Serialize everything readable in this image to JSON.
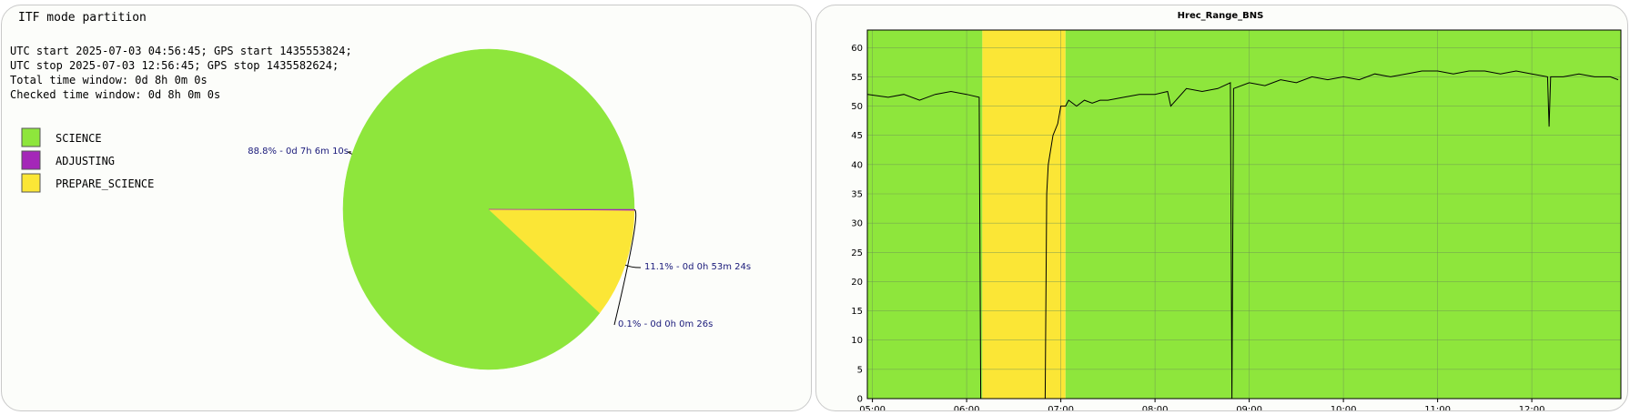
{
  "left": {
    "title": "ITF mode partition",
    "info_lines": [
      "UTC start 2025-07-03 04:56:45; GPS start 1435553824;",
      "UTC stop 2025-07-03 12:56:45; GPS stop 1435582624;",
      "Total time window: 0d 8h 0m 0s",
      "Checked time window: 0d 8h 0m 0s"
    ],
    "legend": [
      {
        "label": "SCIENCE",
        "color": "#8ee63c"
      },
      {
        "label": "ADJUSTING",
        "color": "#a427b8"
      },
      {
        "label": "PREPARE_SCIENCE",
        "color": "#fbe636"
      }
    ]
  },
  "chart_data": [
    {
      "type": "pie",
      "title": "ITF mode partition",
      "slices": [
        {
          "name": "SCIENCE",
          "percent": 88.8,
          "label": "88.8% - 0d 7h 6m 10s",
          "color": "#8ee63c"
        },
        {
          "name": "PREPARE_SCIENCE",
          "percent": 11.1,
          "label": "11.1% - 0d 0h 53m 24s",
          "color": "#fbe636"
        },
        {
          "name": "ADJUSTING",
          "percent": 0.1,
          "label": "0.1% - 0d 0h 0m 26s",
          "color": "#a427b8"
        }
      ]
    },
    {
      "type": "line",
      "title": "Hrec_Range_BNS",
      "xlabel": "",
      "ylabel": "",
      "x_range": [
        "04:56:45",
        "12:56:45"
      ],
      "ylim": [
        0,
        63
      ],
      "grid": true,
      "x_ticks": [
        "05:00",
        "06:00",
        "07:00",
        "08:00",
        "09:00",
        "10:00",
        "11:00",
        "12:00"
      ],
      "y_ticks": [
        0,
        5,
        10,
        15,
        20,
        25,
        30,
        35,
        40,
        45,
        50,
        55,
        60
      ],
      "background_bands": [
        {
          "mode": "SCIENCE",
          "from": "04:56:45",
          "to": "06:10",
          "color": "#8ee63c"
        },
        {
          "mode": "PREPARE_SCIENCE",
          "from": "06:10",
          "to": "07:03",
          "color": "#fbe636"
        },
        {
          "mode": "SCIENCE",
          "from": "07:03",
          "to": "12:56:45",
          "color": "#8ee63c"
        }
      ],
      "series": [
        {
          "color": "#000000",
          "x": [
            "04:57",
            "05:10",
            "05:20",
            "05:30",
            "05:40",
            "05:50",
            "06:00",
            "06:08",
            "06:09",
            "06:10",
            "06:50",
            "06:51",
            "06:52",
            "06:55",
            "06:58",
            "07:00",
            "07:02",
            "07:03",
            "07:05",
            "07:10",
            "07:15",
            "07:20",
            "07:25",
            "07:30",
            "07:40",
            "07:50",
            "08:00",
            "08:08",
            "08:10",
            "08:20",
            "08:30",
            "08:40",
            "08:48",
            "08:49",
            "08:50",
            "09:00",
            "09:10",
            "09:20",
            "09:30",
            "09:40",
            "09:50",
            "10:00",
            "10:10",
            "10:20",
            "10:30",
            "10:40",
            "10:50",
            "11:00",
            "11:10",
            "11:20",
            "11:30",
            "11:40",
            "11:50",
            "12:00",
            "12:10",
            "12:11",
            "12:12",
            "12:20",
            "12:30",
            "12:40",
            "12:50",
            "12:55"
          ],
          "values": [
            52,
            51.5,
            52,
            51,
            52,
            52.5,
            52,
            51.5,
            0,
            0,
            0,
            35,
            40,
            45,
            47,
            50,
            50,
            50,
            51,
            50,
            51,
            50.5,
            51,
            51,
            51.5,
            52,
            52,
            52.5,
            50,
            53,
            52.5,
            53,
            54,
            0,
            53,
            54,
            53.5,
            54.5,
            54,
            55,
            54.5,
            55,
            54.5,
            55.5,
            55,
            55.5,
            56,
            56,
            55.5,
            56,
            56,
            55.5,
            56,
            55.5,
            55,
            46.5,
            55,
            55,
            55.5,
            55,
            55,
            54.5
          ]
        }
      ]
    }
  ]
}
